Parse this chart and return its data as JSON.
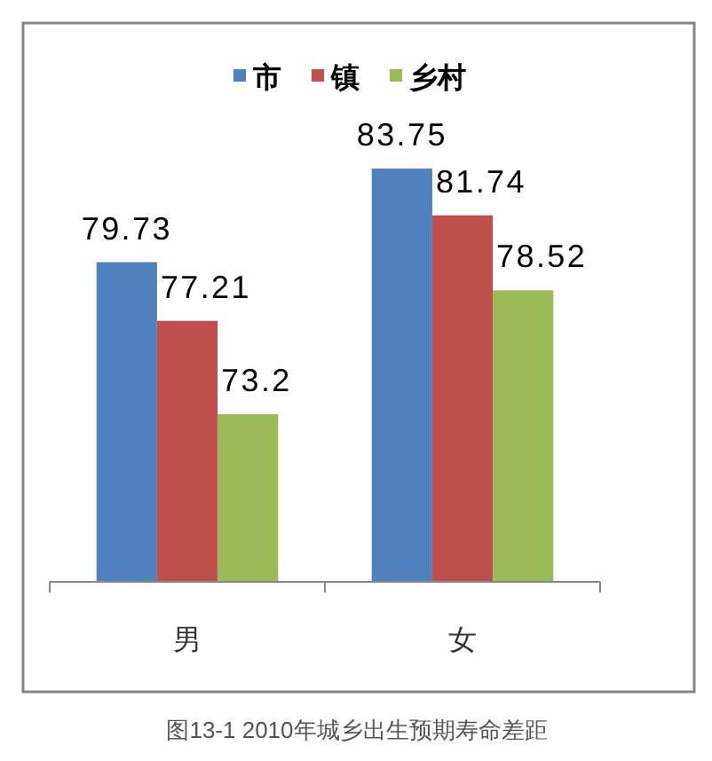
{
  "chart_data": {
    "type": "bar",
    "categories": [
      "男",
      "女"
    ],
    "series": [
      {
        "name": "市",
        "color": "#4f81bd",
        "values": [
          79.73,
          83.75
        ]
      },
      {
        "name": "镇",
        "color": "#c0504d",
        "values": [
          77.21,
          81.74
        ]
      },
      {
        "name": "乡村",
        "color": "#9bbb59",
        "values": [
          73.2,
          78.52
        ]
      }
    ],
    "ylim": [
      66,
      90
    ],
    "tick_labels": "x",
    "data_labels": true,
    "legend": "top",
    "annotations": [
      "图13-1 2010年城乡出生预期寿命差距"
    ]
  }
}
